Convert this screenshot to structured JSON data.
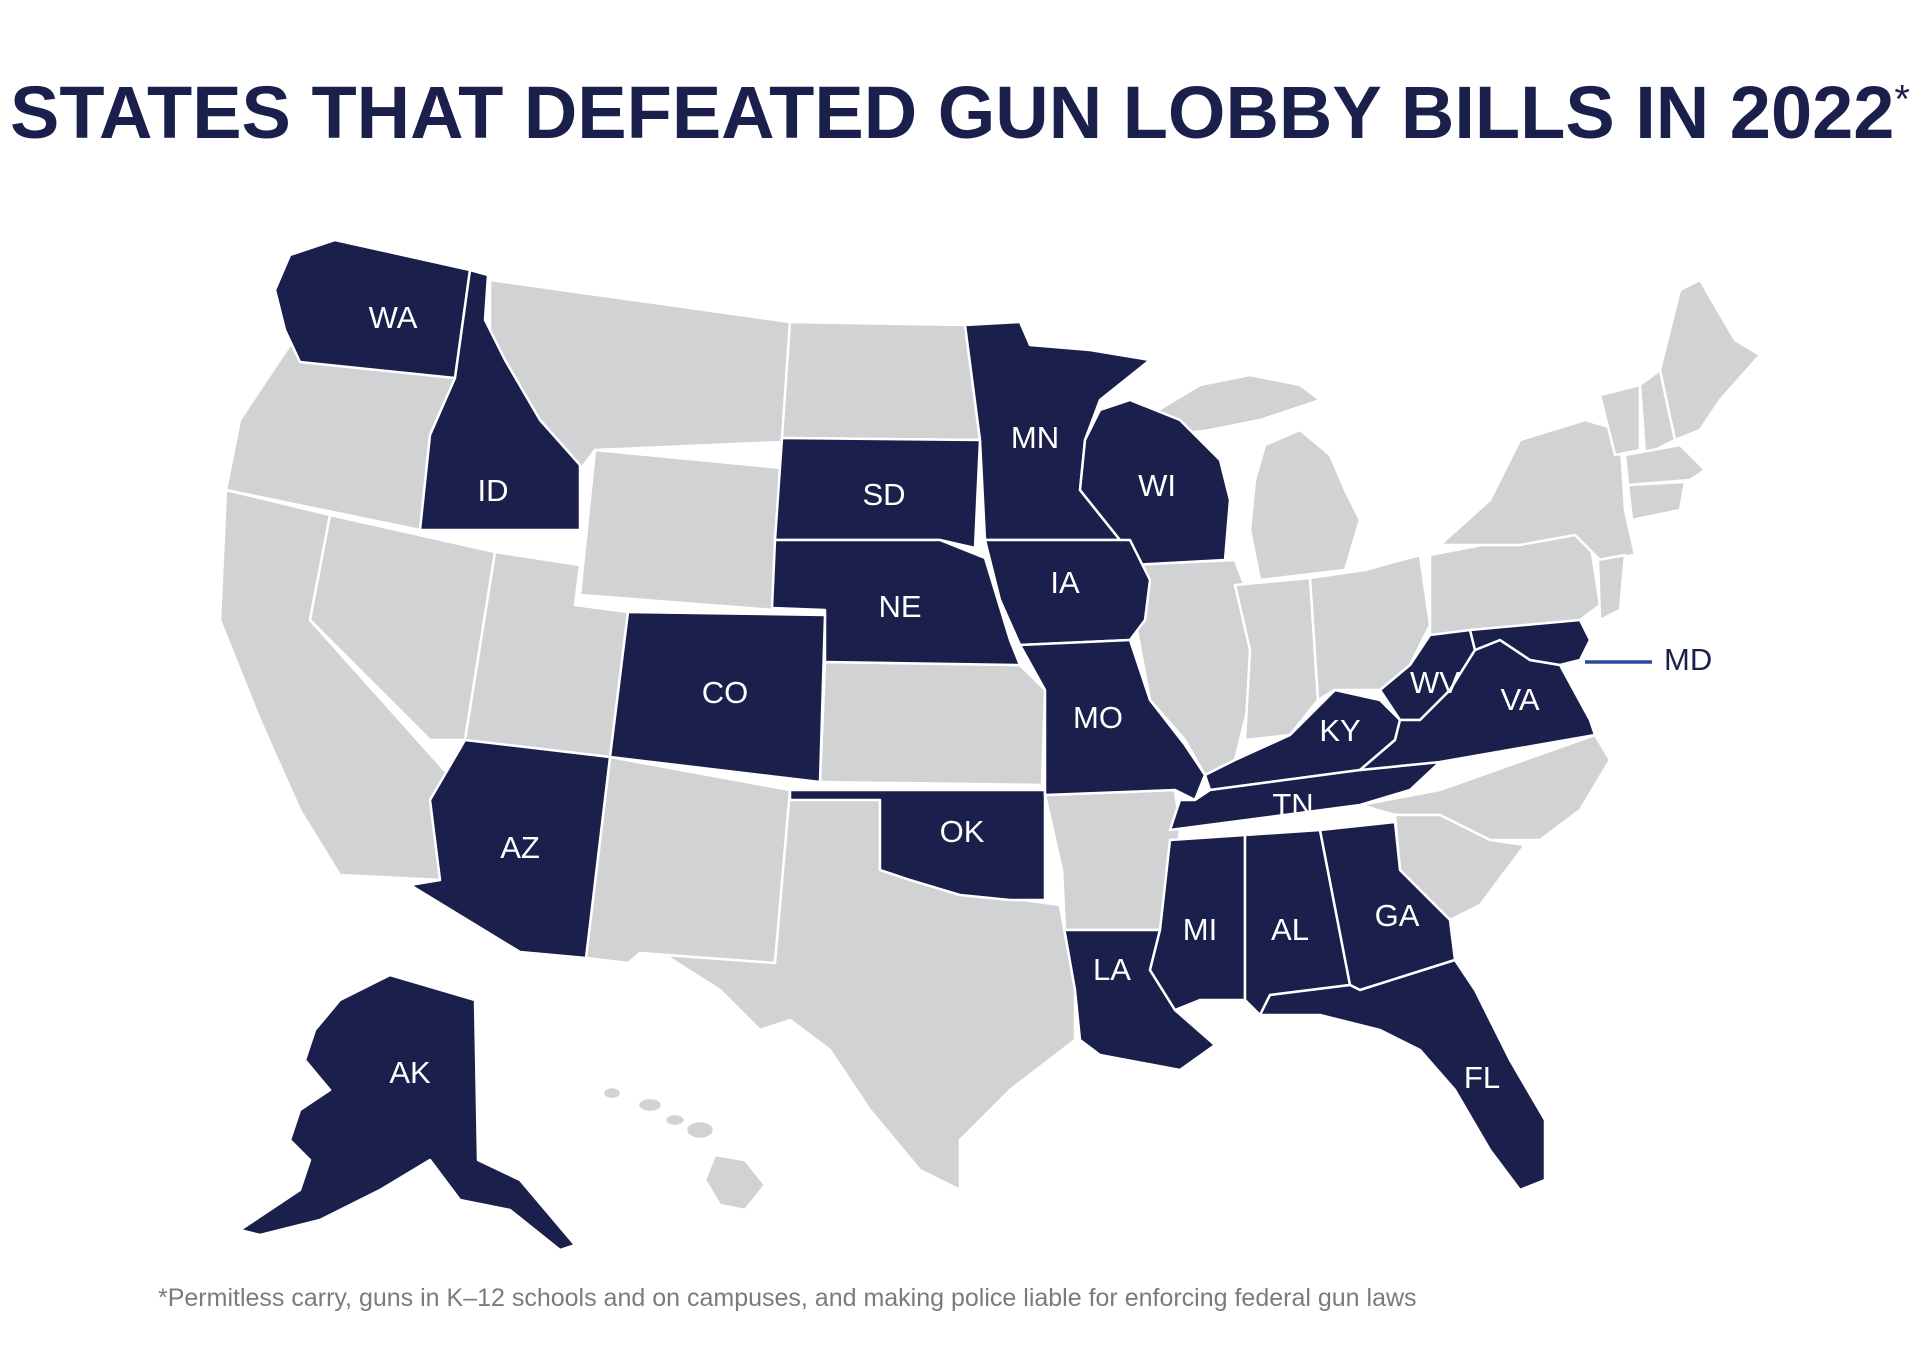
{
  "title": "STATES THAT DEFEATED GUN LOBBY BILLS IN 2022",
  "title_asterisk": "*",
  "footnote": "*Permitless carry, guns in K–12 schools and on campuses, and making police liable for enforcing federal gun laws",
  "colors": {
    "highlighted_state": "#1b1f4b",
    "other_state": "#d1d2d4",
    "border": "#ffffff",
    "title": "#1b1f4b",
    "callout_line": "#2b4b9a"
  },
  "highlighted_states": [
    "WA",
    "ID",
    "MN",
    "WI",
    "SD",
    "NE",
    "IA",
    "CO",
    "MO",
    "KY",
    "WV",
    "VA",
    "MD",
    "AZ",
    "OK",
    "TN",
    "LA",
    "MI",
    "AL",
    "GA",
    "FL",
    "AK"
  ],
  "labels": {
    "WA": "WA",
    "ID": "ID",
    "MN": "MN",
    "WI": "WI",
    "SD": "SD",
    "NE": "NE",
    "IA": "IA",
    "CO": "CO",
    "MO": "MO",
    "KY": "KY",
    "WV": "WV",
    "VA": "VA",
    "MD": "MD",
    "AZ": "AZ",
    "OK": "OK",
    "TN": "TN",
    "LA": "LA",
    "MI": "MI",
    "AL": "AL",
    "GA": "GA",
    "FL": "FL",
    "AK": "AK"
  }
}
